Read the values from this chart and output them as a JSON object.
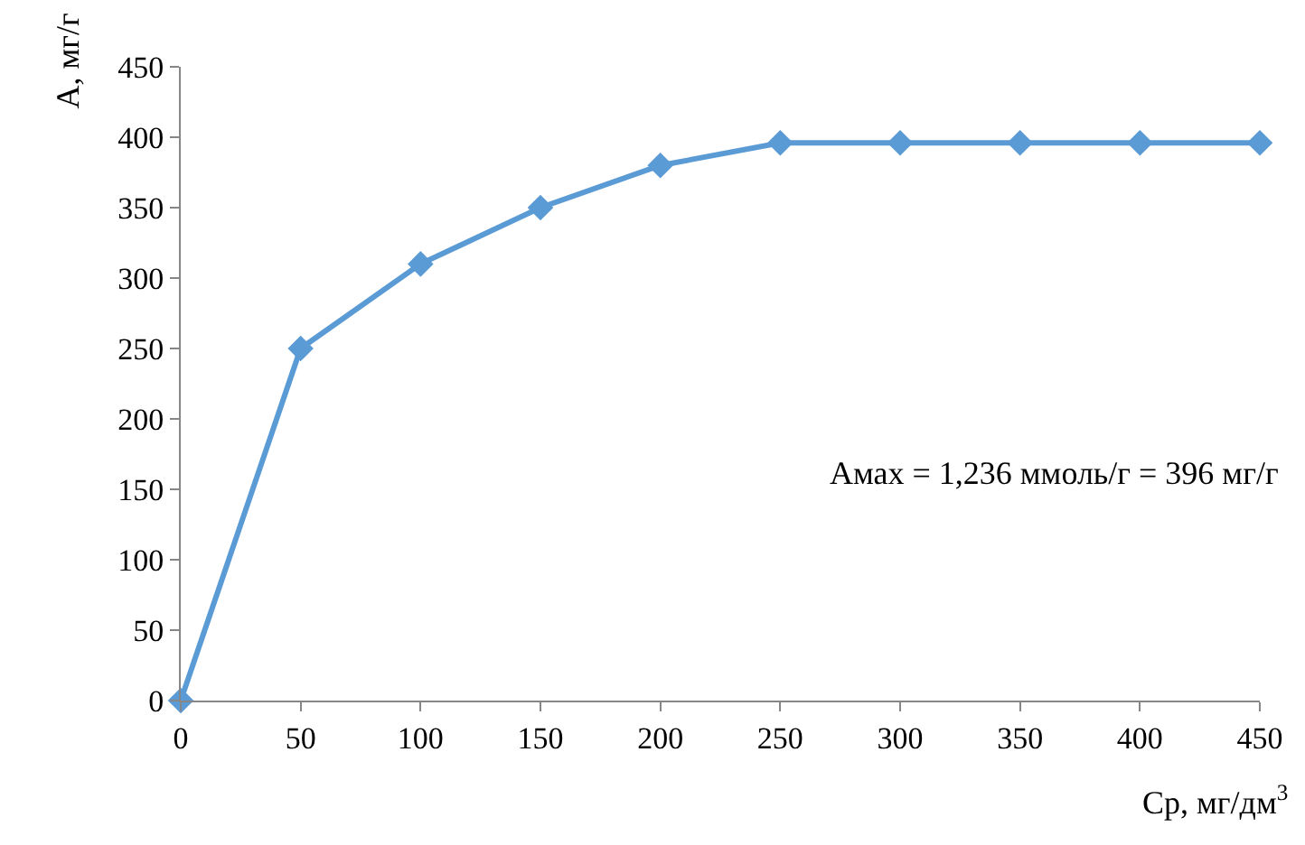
{
  "chart_data": {
    "type": "line",
    "xlabel": "Ср, мг/дм$^{3}$",
    "ylabel": "А, мг/г",
    "annotations": [
      "Амах = 1,236 ммоль/г = 396 мг/г"
    ],
    "x": [
      0,
      50,
      100,
      150,
      200,
      250,
      300,
      350,
      400,
      450
    ],
    "series": [
      {
        "color": "#5b9bd5",
        "values": [
          0,
          250,
          310,
          350,
          380,
          396,
          396,
          396,
          396,
          396
        ]
      }
    ],
    "xlim": [
      0,
      450
    ],
    "xticks": [
      0,
      50,
      100,
      150,
      200,
      250,
      300,
      350,
      400,
      450
    ],
    "ylim": [
      0,
      450
    ],
    "yticks": [
      0,
      50,
      100,
      150,
      200,
      250,
      300,
      350,
      400,
      450
    ],
    "marker": "diamond",
    "line_style": "solid"
  }
}
